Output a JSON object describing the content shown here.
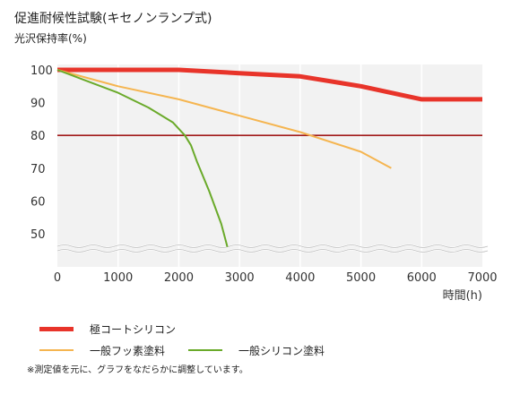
{
  "chart_data": {
    "type": "line",
    "title": "促進耐候性試験(キセノンランプ式)",
    "ylabel": "光沢保持率(%)",
    "xlabel": "時間(h)",
    "xlim": [
      0,
      7000
    ],
    "ylim": [
      40,
      100
    ],
    "xticks": [
      "0",
      "1000",
      "2000",
      "3000",
      "4000",
      "5000",
      "6000",
      "7000"
    ],
    "yticks": [
      "100",
      "90",
      "80",
      "70",
      "60",
      "50"
    ],
    "axis_break": true,
    "reference_line": 80,
    "grid": "vertical",
    "series": [
      {
        "name": "極コートシリコン",
        "color": "#e8342a",
        "x": [
          0,
          1000,
          2000,
          3000,
          4000,
          5000,
          6000,
          7000
        ],
        "y": [
          100,
          100,
          100,
          99,
          98,
          95,
          91,
          91
        ]
      },
      {
        "name": "一般フッ素塗料",
        "color": "#f5b550",
        "x": [
          0,
          1000,
          2000,
          3000,
          4000,
          5000,
          5500
        ],
        "y": [
          100,
          95,
          91,
          86,
          81,
          75,
          70
        ]
      },
      {
        "name": "一般シリコン塗料",
        "color": "#6aaa2a",
        "x": [
          0,
          500,
          1000,
          1500,
          1900,
          2100,
          2200,
          2300,
          2500,
          2700,
          2800
        ],
        "y": [
          100,
          96.5,
          93,
          88.5,
          84,
          80,
          77,
          72,
          63,
          53,
          46
        ]
      }
    ],
    "note": "※測定値を元に、グラフをなだらかに調整しています。"
  }
}
